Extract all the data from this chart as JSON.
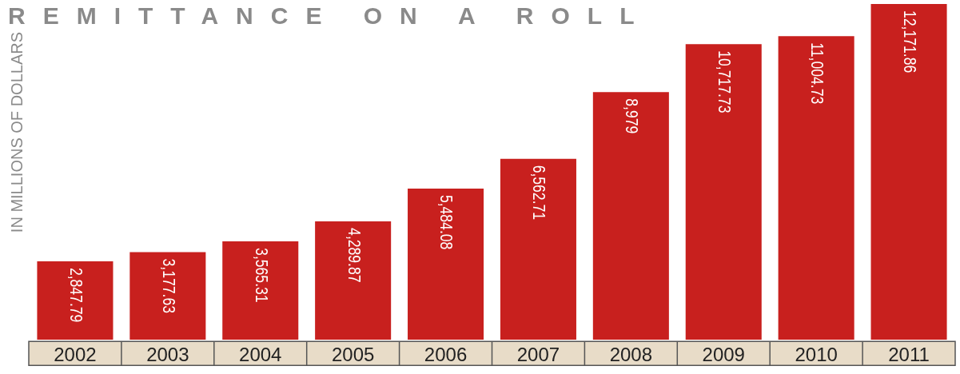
{
  "chart_data": {
    "type": "bar",
    "title": "REMITTANCE ON A ROLL",
    "ylabel": "IN MILLIONS OF DOLLARS",
    "categories": [
      "2002",
      "2003",
      "2004",
      "2005",
      "2006",
      "2007",
      "2008",
      "2009",
      "2010",
      "2011"
    ],
    "values": [
      2847.79,
      3177.63,
      3565.31,
      4289.87,
      5484.08,
      6562.71,
      8979,
      10717.73,
      11004.73,
      12171.86
    ],
    "value_labels": [
      "2,847.79",
      "3,177.63",
      "3,565.31",
      "4,289.87",
      "5,484.08",
      "6,562.71",
      "8,979",
      "10,717.73",
      "11,004.73",
      "12,171.86"
    ],
    "color": "#c8201e",
    "legend": false
  }
}
